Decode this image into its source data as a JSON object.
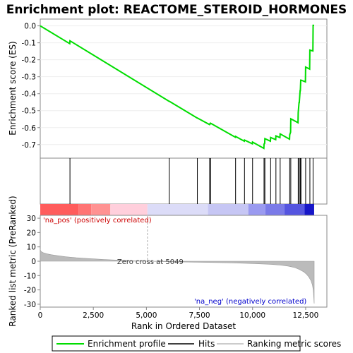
{
  "chart_data": {
    "type": "line",
    "title": "Enrichment plot: REACTOME_STEROID_HORMONES",
    "xlabel": "Rank in Ordered Dataset",
    "ylabel_top": "Enrichment score (ES)",
    "ylabel_bottom": "Ranked list metric (PreRanked)",
    "x_range": [
      0,
      13500
    ],
    "x_ticks": [
      0,
      2500,
      5000,
      7500,
      10000,
      12500
    ],
    "x_tick_labels": [
      "0",
      "2,500",
      "5,000",
      "7,500",
      "10,000",
      "12,500"
    ],
    "es_range": [
      -0.78,
      0.04
    ],
    "es_ticks": [
      0.0,
      -0.1,
      -0.2,
      -0.3,
      -0.4,
      -0.5,
      -0.6,
      -0.7
    ],
    "es_tick_labels": [
      "0.0",
      "-0.1",
      "-0.2",
      "-0.3",
      "-0.4",
      "-0.5",
      "-0.6",
      "-0.7"
    ],
    "metric_range": [
      -32,
      32
    ],
    "metric_ticks": [
      30,
      20,
      10,
      0,
      -10,
      -20,
      -30
    ],
    "metric_tick_labels": [
      "30",
      "20",
      "10",
      "0",
      "-10",
      "-20",
      "-30"
    ],
    "dataset_size": 12900,
    "zero_cross": 5049,
    "zero_cross_label": "Zero cross at 5049",
    "pos_label": "'na_pos' (positively correlated)",
    "neg_label": "'na_neg' (negatively correlated)",
    "hits": [
      1400,
      6080,
      7400,
      7980,
      8020,
      9200,
      9620,
      10000,
      10540,
      10580,
      10850,
      11100,
      11300,
      11750,
      11800,
      12150,
      12200,
      12250,
      12280,
      12500,
      12700,
      12850
    ],
    "es_curve": [
      [
        0,
        0.0
      ],
      [
        1390,
        -0.105
      ],
      [
        1400,
        -0.088
      ],
      [
        6070,
        -0.445
      ],
      [
        6080,
        -0.445
      ],
      [
        7390,
        -0.543
      ],
      [
        7400,
        -0.543
      ],
      [
        7970,
        -0.582
      ],
      [
        7980,
        -0.578
      ],
      [
        8010,
        -0.578
      ],
      [
        8020,
        -0.574
      ],
      [
        9190,
        -0.657
      ],
      [
        9200,
        -0.652
      ],
      [
        9610,
        -0.68
      ],
      [
        9620,
        -0.673
      ],
      [
        9990,
        -0.695
      ],
      [
        10000,
        -0.685
      ],
      [
        10530,
        -0.722
      ],
      [
        10540,
        -0.697
      ],
      [
        10570,
        -0.693
      ],
      [
        10580,
        -0.665
      ],
      [
        10840,
        -0.68
      ],
      [
        10850,
        -0.658
      ],
      [
        11090,
        -0.671
      ],
      [
        11100,
        -0.649
      ],
      [
        11290,
        -0.659
      ],
      [
        11300,
        -0.637
      ],
      [
        11740,
        -0.668
      ],
      [
        11750,
        -0.642
      ],
      [
        11790,
        -0.627
      ],
      [
        11800,
        -0.548
      ],
      [
        12140,
        -0.571
      ],
      [
        12150,
        -0.511
      ],
      [
        12190,
        -0.452
      ],
      [
        12200,
        -0.452
      ],
      [
        12240,
        -0.382
      ],
      [
        12250,
        -0.382
      ],
      [
        12270,
        -0.32
      ],
      [
        12280,
        -0.32
      ],
      [
        12490,
        -0.33
      ],
      [
        12500,
        -0.243
      ],
      [
        12690,
        -0.255
      ],
      [
        12700,
        -0.143
      ],
      [
        12840,
        -0.148
      ],
      [
        12850,
        0.003
      ],
      [
        12900,
        0.003
      ]
    ],
    "metric_curve": [
      [
        0,
        8.5
      ],
      [
        20,
        7.2
      ],
      [
        60,
        6.6
      ],
      [
        150,
        5.9
      ],
      [
        300,
        5.2
      ],
      [
        500,
        4.6
      ],
      [
        800,
        3.9
      ],
      [
        1200,
        3.1
      ],
      [
        1700,
        2.4
      ],
      [
        2300,
        1.8
      ],
      [
        3000,
        1.2
      ],
      [
        3800,
        0.65
      ],
      [
        4500,
        0.25
      ],
      [
        5049,
        0.0
      ],
      [
        6000,
        -0.35
      ],
      [
        7000,
        -0.6
      ],
      [
        8000,
        -0.85
      ],
      [
        9000,
        -1.15
      ],
      [
        10000,
        -1.6
      ],
      [
        10800,
        -2.1
      ],
      [
        11300,
        -2.7
      ],
      [
        11700,
        -3.5
      ],
      [
        12000,
        -4.5
      ],
      [
        12200,
        -5.7
      ],
      [
        12400,
        -7.3
      ],
      [
        12550,
        -9.2
      ],
      [
        12650,
        -11.0
      ],
      [
        12750,
        -13.5
      ],
      [
        12820,
        -16.5
      ],
      [
        12860,
        -20.5
      ],
      [
        12885,
        -25.5
      ],
      [
        12900,
        -29.5
      ]
    ],
    "colors": {
      "es_line": "#00dd00",
      "hit_line": "#000000",
      "metric_fill": "#bbbbbb",
      "metric_edge": "#999999",
      "zero_line": "#c8c8c8",
      "pos_text": "#cc0000",
      "neg_text": "#0000cc",
      "axis": "#888888"
    },
    "heat_band": [
      {
        "x0": 0,
        "x1": 1800,
        "color": "#ff5c5c"
      },
      {
        "x0": 1800,
        "x1": 2400,
        "color": "#ff7474"
      },
      {
        "x0": 2400,
        "x1": 3300,
        "color": "#ff9292"
      },
      {
        "x0": 3300,
        "x1": 5049,
        "color": "#ffcfdc"
      },
      {
        "x0": 5049,
        "x1": 7900,
        "color": "#dcdcf8"
      },
      {
        "x0": 7900,
        "x1": 9800,
        "color": "#c6c6f4"
      },
      {
        "x0": 9800,
        "x1": 10600,
        "color": "#9a9af0"
      },
      {
        "x0": 10600,
        "x1": 11500,
        "color": "#7a7ae8"
      },
      {
        "x0": 11500,
        "x1": 12450,
        "color": "#5555e0"
      },
      {
        "x0": 12450,
        "x1": 12900,
        "color": "#1616c8"
      }
    ],
    "legend": [
      "Enrichment profile",
      "Hits",
      "Ranking metric scores"
    ]
  }
}
